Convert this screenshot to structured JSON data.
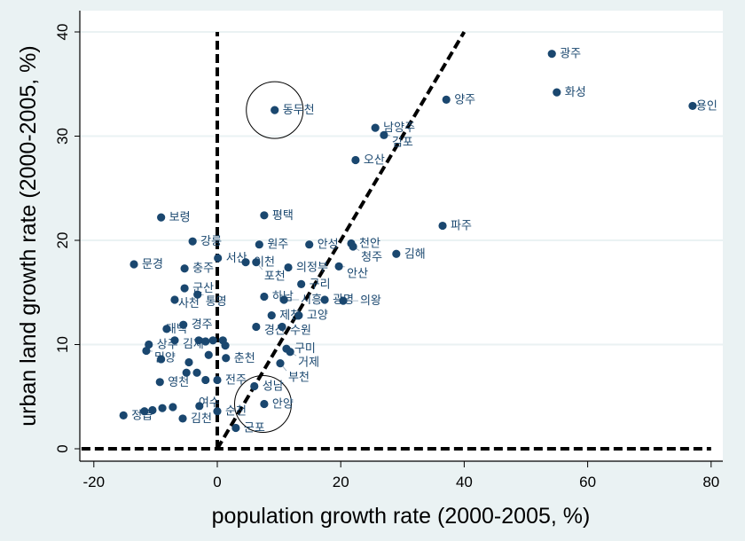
{
  "chart_data": {
    "type": "scatter",
    "title": "",
    "xlabel": "population growth rate (2000-2005, %)",
    "ylabel": "urban land growth rate (2000-2005, %)",
    "xlim": [
      -22,
      81
    ],
    "ylim": [
      -1,
      40.5
    ],
    "xticks": [
      -20,
      0,
      20,
      40,
      60,
      80
    ],
    "yticks": [
      0,
      10,
      20,
      30,
      40
    ],
    "grid": "horizontal",
    "marker_color": "#1a476f",
    "reference_lines": [
      {
        "style": "dashed",
        "from": [
          0,
          0
        ],
        "to": [
          0,
          40
        ]
      },
      {
        "style": "dashed",
        "from": [
          -22,
          0
        ],
        "to": [
          80,
          0
        ]
      },
      {
        "style": "dashed",
        "from": [
          0,
          0
        ],
        "to": [
          40,
          40
        ]
      }
    ],
    "highlight_circles": [
      {
        "center": [
          9.3,
          32.5
        ],
        "label": "동두천"
      },
      {
        "center": [
          7.4,
          4.3
        ],
        "label": "안양"
      }
    ],
    "points": [
      {
        "label": "광주",
        "x": 54.2,
        "y": 37.9
      },
      {
        "label": "화성",
        "x": 55.0,
        "y": 34.2
      },
      {
        "label": "용인",
        "x": 77.0,
        "y": 32.9
      },
      {
        "label": "양주",
        "x": 37.1,
        "y": 33.5
      },
      {
        "label": "동두천",
        "x": 9.3,
        "y": 32.5
      },
      {
        "label": "남양주",
        "x": 25.6,
        "y": 30.8
      },
      {
        "label": "김포",
        "x": 27.0,
        "y": 30.1
      },
      {
        "label": "오산",
        "x": 22.4,
        "y": 27.7
      },
      {
        "label": "평택",
        "x": 7.6,
        "y": 22.4
      },
      {
        "label": "파주",
        "x": 36.5,
        "y": 21.4
      },
      {
        "label": "보령",
        "x": -9.1,
        "y": 22.2
      },
      {
        "label": "강릉",
        "x": -4.0,
        "y": 19.9
      },
      {
        "label": "원주",
        "x": 6.8,
        "y": 19.6
      },
      {
        "label": "안성",
        "x": 14.9,
        "y": 19.6
      },
      {
        "label": "천안",
        "x": 21.7,
        "y": 19.7
      },
      {
        "label": "청주",
        "x": 22.0,
        "y": 19.4
      },
      {
        "label": "김해",
        "x": 29.0,
        "y": 18.7
      },
      {
        "label": "문경",
        "x": -13.5,
        "y": 17.7
      },
      {
        "label": "충주",
        "x": -5.3,
        "y": 17.3
      },
      {
        "label": "서산",
        "x": 0.1,
        "y": 18.3
      },
      {
        "label": "이천",
        "x": 4.6,
        "y": 17.9
      },
      {
        "label": "포천",
        "x": 6.3,
        "y": 17.9
      },
      {
        "label": "의정부",
        "x": 11.5,
        "y": 17.4
      },
      {
        "label": "안산",
        "x": 19.7,
        "y": 17.5
      },
      {
        "label": "구리",
        "x": 13.6,
        "y": 15.8
      },
      {
        "label": "군산",
        "x": -5.3,
        "y": 15.4
      },
      {
        "label": "통영",
        "x": -3.2,
        "y": 14.8
      },
      {
        "label": "사천",
        "x": -6.9,
        "y": 14.3
      },
      {
        "label": "하남",
        "x": 7.6,
        "y": 14.6
      },
      {
        "label": "시흥",
        "x": 10.8,
        "y": 14.3
      },
      {
        "label": "광명",
        "x": 17.4,
        "y": 14.3
      },
      {
        "label": "의왕",
        "x": 20.4,
        "y": 14.2
      },
      {
        "label": "제천",
        "x": 8.8,
        "y": 12.8
      },
      {
        "label": "고양",
        "x": 13.2,
        "y": 12.8
      },
      {
        "label": "경산",
        "x": 6.3,
        "y": 11.7
      },
      {
        "label": "수원",
        "x": 10.5,
        "y": 11.7
      },
      {
        "label": "구미",
        "x": 11.2,
        "y": 9.6
      },
      {
        "label": "거제",
        "x": 11.8,
        "y": 9.3
      },
      {
        "label": "부천",
        "x": 10.2,
        "y": 8.2
      },
      {
        "label": "경주",
        "x": -5.5,
        "y": 11.9
      },
      {
        "label": "태백",
        "x": -8.2,
        "y": 11.5
      },
      {
        "label": "상주",
        "x": -11.1,
        "y": 10.0
      },
      {
        "label": "밀양",
        "x": -11.5,
        "y": 9.4
      },
      {
        "label": "김제",
        "x": -6.9,
        "y": 10.4
      },
      {
        "label": "",
        "x": -9.1,
        "y": 8.6
      },
      {
        "label": "",
        "x": -4.6,
        "y": 8.3
      },
      {
        "label": "",
        "x": -1.4,
        "y": 9.0
      },
      {
        "label": "",
        "x": -3.0,
        "y": 10.4
      },
      {
        "label": "",
        "x": -1.9,
        "y": 10.3
      },
      {
        "label": "",
        "x": -0.7,
        "y": 10.4
      },
      {
        "label": "",
        "x": 0.9,
        "y": 10.4
      },
      {
        "label": "",
        "x": 1.3,
        "y": 9.9
      },
      {
        "label": "춘천",
        "x": 1.4,
        "y": 8.7
      },
      {
        "label": "",
        "x": -5.0,
        "y": 7.3
      },
      {
        "label": "",
        "x": -3.3,
        "y": 7.3
      },
      {
        "label": "",
        "x": -1.9,
        "y": 6.6
      },
      {
        "label": "전주",
        "x": 0.0,
        "y": 6.6
      },
      {
        "label": "영천",
        "x": -9.3,
        "y": 6.4
      },
      {
        "label": "성남",
        "x": 6.0,
        "y": 6.0
      },
      {
        "label": "안양",
        "x": 7.6,
        "y": 4.3
      },
      {
        "label": "군포",
        "x": 3.0,
        "y": 2.0
      },
      {
        "label": "순천",
        "x": 0.0,
        "y": 3.6
      },
      {
        "label": "김천",
        "x": -5.6,
        "y": 2.9
      },
      {
        "label": "여수",
        "x": -2.9,
        "y": 4.1
      },
      {
        "label": "정읍",
        "x": -15.2,
        "y": 3.2
      },
      {
        "label": "",
        "x": -11.8,
        "y": 3.6
      },
      {
        "label": "",
        "x": -10.5,
        "y": 3.7
      },
      {
        "label": "",
        "x": -8.9,
        "y": 3.9
      },
      {
        "label": "",
        "x": -7.2,
        "y": 4.0
      }
    ]
  }
}
